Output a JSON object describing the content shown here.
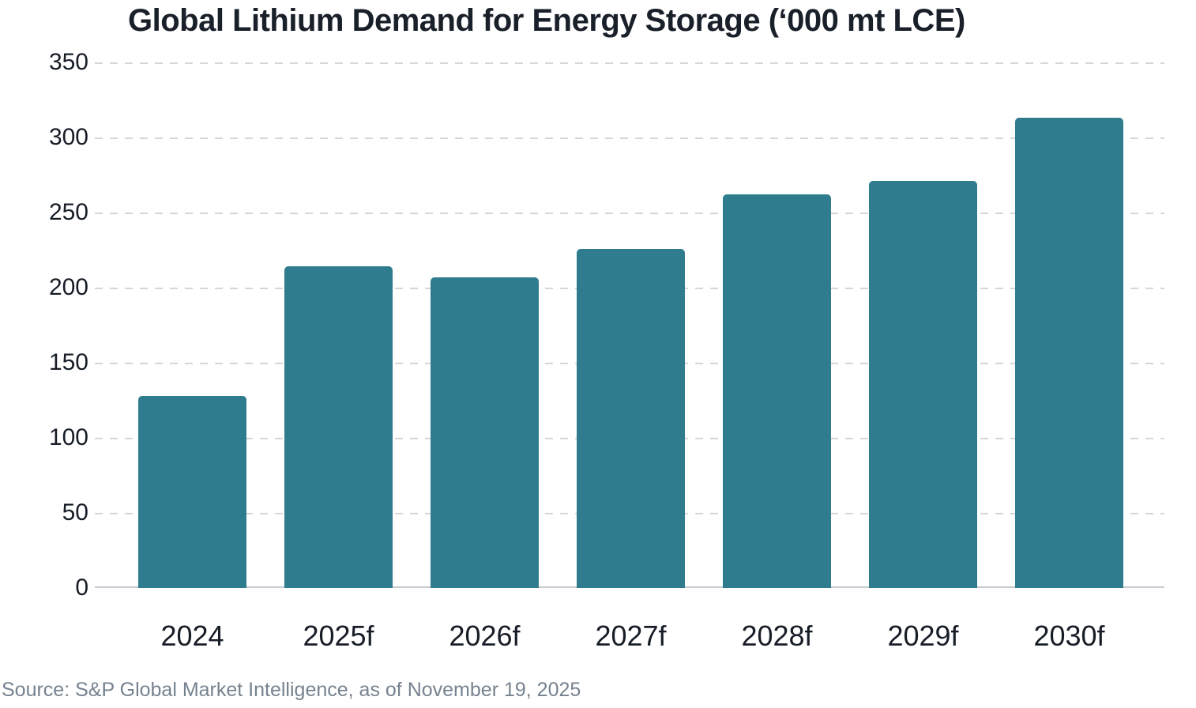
{
  "chart_data": {
    "type": "bar",
    "title": "Global Lithium Demand for Energy Storage (‘000 mt LCE)",
    "categories": [
      "2024",
      "2025f",
      "2026f",
      "2027f",
      "2028f",
      "2029f",
      "2030f"
    ],
    "values": [
      128,
      214,
      207,
      226,
      262,
      271,
      313
    ],
    "xlabel": "",
    "ylabel": "",
    "ylim": [
      0,
      350
    ],
    "yticks": [
      0,
      50,
      100,
      150,
      200,
      250,
      300,
      350
    ],
    "grid": "horizontal-dashed",
    "legend_position": "none",
    "bar_color": "#2e7c8d"
  },
  "source": "Source: S&P Global Market Intelligence, as of November 19, 2025",
  "colors": {
    "background": "#ffffff",
    "title_text": "#1a202a",
    "axis_text": "#171d27",
    "source_text": "#76828f",
    "gridline": "#d6d6d6",
    "baseline": "#c9ced3"
  }
}
